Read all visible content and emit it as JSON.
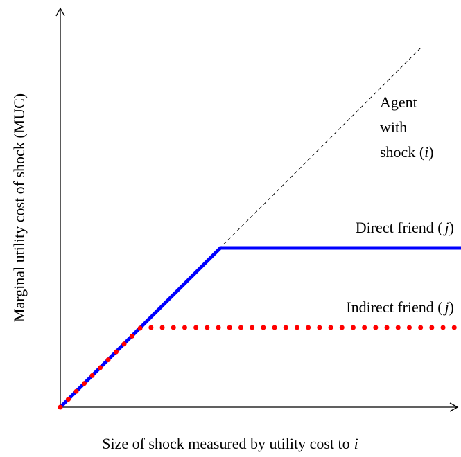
{
  "y_axis_label": "Marginal utility cost of shock (MUC)",
  "x_axis_label": [
    "Size of shock measured by utility cost to",
    "i"
  ],
  "agent_label": [
    "Agent",
    "with",
    "shock (",
    "i",
    ")"
  ],
  "direct_friend_label": [
    "Direct friend (",
    "j",
    ")"
  ],
  "indirect_friend_label": [
    "Indirect friend (",
    "j",
    ")"
  ]
}
